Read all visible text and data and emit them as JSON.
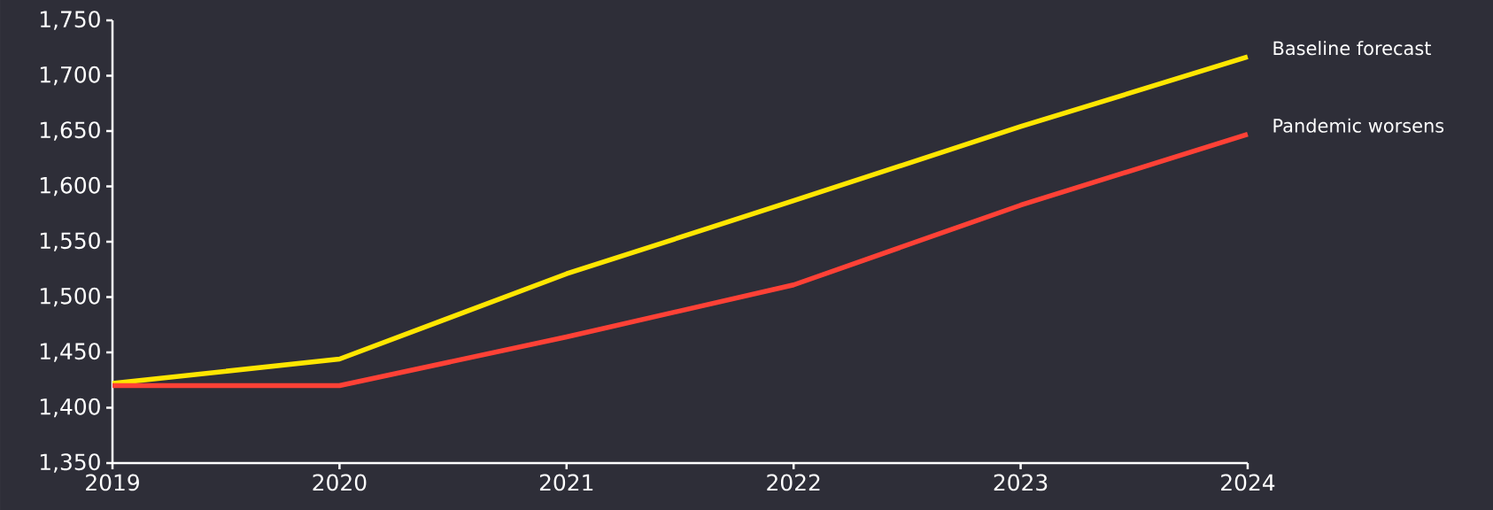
{
  "chart_data": {
    "type": "line",
    "x": [
      2019,
      2020,
      2021,
      2022,
      2023,
      2024
    ],
    "series": [
      {
        "name": "Baseline forecast",
        "color": "#ffe600",
        "values": [
          1422,
          1444,
          1521,
          1587,
          1654,
          1717
        ]
      },
      {
        "name": "Pandemic worsens",
        "color": "#ff4136",
        "values": [
          1420,
          1420,
          1464,
          1511,
          1583,
          1647
        ]
      }
    ],
    "xlim": [
      2019,
      2024
    ],
    "xticks": [
      2019,
      2020,
      2021,
      2022,
      2023,
      2024
    ],
    "ylim": [
      1350,
      1750
    ],
    "yticks": [
      {
        "value": 1350,
        "label": "1,350"
      },
      {
        "value": 1400,
        "label": "1,400"
      },
      {
        "value": 1450,
        "label": "1,450"
      },
      {
        "value": 1500,
        "label": "1,500"
      },
      {
        "value": 1550,
        "label": "1,550"
      },
      {
        "value": 1600,
        "label": "1,600"
      },
      {
        "value": 1650,
        "label": "1,650"
      },
      {
        "value": 1700,
        "label": "1,700"
      },
      {
        "value": 1750,
        "label": "1,750"
      }
    ],
    "grid": false,
    "legend": false,
    "marker": "none",
    "line_style": "solid"
  }
}
